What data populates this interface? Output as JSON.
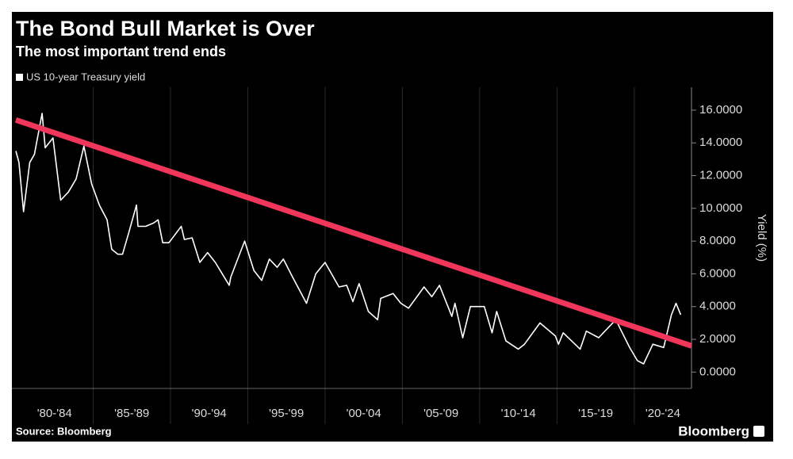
{
  "chart_data": {
    "type": "line",
    "title": "The Bond Bull Market is Over",
    "subtitle": "The most important trend ends",
    "y_label": "Yield (%)",
    "source": "Source: Bloomberg",
    "brand": "Bloomberg",
    "categories": [
      "'80-'84",
      "'85-'89",
      "'90-'94",
      "'95-'99",
      "'00-'04",
      "'05-'09",
      "'10-'14",
      "'15-'19",
      "'20-'24"
    ],
    "xlim": [
      1980,
      2023.7
    ],
    "xticks": [
      1985,
      1990,
      1995,
      2000,
      2005,
      2010,
      2015,
      2020
    ],
    "ylim": [
      -1,
      17.4
    ],
    "yticks": [
      {
        "value": 0,
        "label": "0.0000"
      },
      {
        "value": 2,
        "label": "2.0000"
      },
      {
        "value": 4,
        "label": "4.0000"
      },
      {
        "value": 6,
        "label": "6.0000"
      },
      {
        "value": 8,
        "label": "8.0000"
      },
      {
        "value": 10,
        "label": "10.0000"
      },
      {
        "value": 12,
        "label": "12.0000"
      },
      {
        "value": 14,
        "label": "14.0000"
      },
      {
        "value": 16,
        "label": "16.0000"
      }
    ],
    "series": [
      {
        "name": "US 10-year Treasury yield",
        "color": "#ffffff",
        "x": [
          1980.0,
          1980.2,
          1980.5,
          1980.9,
          1981.2,
          1981.7,
          1981.9,
          1982.4,
          1982.9,
          1983.4,
          1983.9,
          1984.4,
          1984.9,
          1985.4,
          1985.9,
          1986.2,
          1986.6,
          1986.9,
          1987.3,
          1987.8,
          1987.9,
          1988.4,
          1988.9,
          1989.2,
          1989.5,
          1989.9,
          1990.7,
          1990.9,
          1991.4,
          1991.9,
          1992.4,
          1992.9,
          1993.8,
          1993.9,
          1994.8,
          1995.4,
          1995.9,
          1996.4,
          1996.9,
          1997.3,
          1997.9,
          1998.8,
          1999.4,
          2000.0,
          2000.9,
          2001.4,
          2001.8,
          2002.2,
          2002.8,
          2003.4,
          2003.6,
          2004.4,
          2004.9,
          2005.4,
          2006.4,
          2006.9,
          2007.4,
          2008.2,
          2008.4,
          2008.9,
          2009.4,
          2010.3,
          2010.8,
          2011.1,
          2011.7,
          2012.5,
          2012.9,
          2013.9,
          2014.9,
          2015.1,
          2015.4,
          2016.5,
          2016.9,
          2017.7,
          2018.8,
          2019.7,
          2020.2,
          2020.6,
          2021.2,
          2021.9,
          2022.4,
          2022.7,
          2023.0
        ],
        "values": [
          13.5,
          12.8,
          9.8,
          12.8,
          13.3,
          15.8,
          13.7,
          14.3,
          10.5,
          11.0,
          11.8,
          13.8,
          11.5,
          10.2,
          9.3,
          7.5,
          7.2,
          7.2,
          8.5,
          10.2,
          8.9,
          8.9,
          9.1,
          9.3,
          7.9,
          7.9,
          8.9,
          8.1,
          8.2,
          6.7,
          7.3,
          6.7,
          5.3,
          5.8,
          8.0,
          6.2,
          5.6,
          6.9,
          6.4,
          6.9,
          5.8,
          4.2,
          6.0,
          6.7,
          5.2,
          5.3,
          4.3,
          5.4,
          3.7,
          3.2,
          4.5,
          4.8,
          4.2,
          3.9,
          5.2,
          4.6,
          5.3,
          3.4,
          4.2,
          2.1,
          4.0,
          4.0,
          2.4,
          3.7,
          1.9,
          1.4,
          1.7,
          3.0,
          2.2,
          1.7,
          2.4,
          1.4,
          2.5,
          2.1,
          3.2,
          1.5,
          0.7,
          0.5,
          1.7,
          1.5,
          3.5,
          4.2,
          3.5
        ]
      }
    ],
    "trendline": {
      "color": "#f0365a",
      "x": [
        1980,
        2023.7
      ],
      "values": [
        15.4,
        1.6
      ]
    }
  }
}
